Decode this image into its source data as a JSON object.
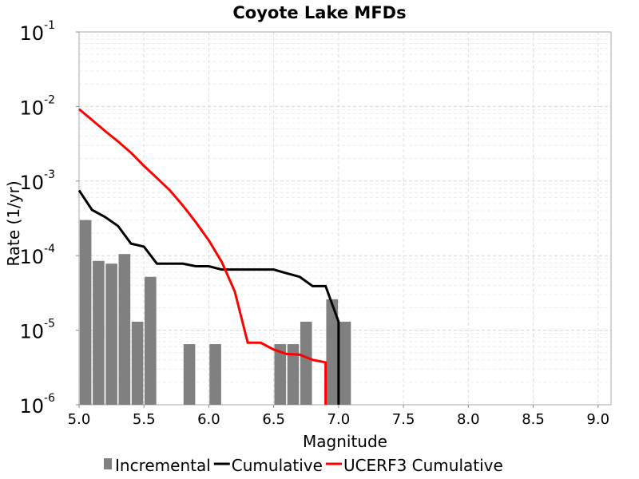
{
  "chart_data": {
    "type": "bar",
    "title": "Coyote Lake MFDs",
    "xlabel": "Magnitude",
    "ylabel": "Rate (1/yr)",
    "x_scale": "linear",
    "y_scale": "log",
    "xlim": [
      5.0,
      9.1
    ],
    "ylim": [
      1e-06,
      0.1
    ],
    "x_ticks": [
      {
        "value": 5.0,
        "label": "5.0"
      },
      {
        "value": 5.5,
        "label": "5.5"
      },
      {
        "value": 6.0,
        "label": "6.0"
      },
      {
        "value": 6.5,
        "label": "6.5"
      },
      {
        "value": 7.0,
        "label": "7.0"
      },
      {
        "value": 7.5,
        "label": "7.5"
      },
      {
        "value": 8.0,
        "label": "8.0"
      },
      {
        "value": 8.5,
        "label": "8.5"
      },
      {
        "value": 9.0,
        "label": "9.0"
      }
    ],
    "y_ticks": [
      {
        "value": 1e-06,
        "base": "10",
        "exp": "-6"
      },
      {
        "value": 1e-05,
        "base": "10",
        "exp": "-5"
      },
      {
        "value": 0.0001,
        "base": "10",
        "exp": "-4"
      },
      {
        "value": 0.001,
        "base": "10",
        "exp": "-3"
      },
      {
        "value": 0.01,
        "base": "10",
        "exp": "-2"
      },
      {
        "value": 0.1,
        "base": "10",
        "exp": "-1"
      }
    ],
    "grid": true,
    "legend_position": "bottom",
    "bar_width": 0.09,
    "series": [
      {
        "name": "Incremental",
        "kind": "bar",
        "color": "#808080",
        "points": [
          {
            "x": 5.05,
            "y": 0.0003
          },
          {
            "x": 5.15,
            "y": 8.5e-05
          },
          {
            "x": 5.25,
            "y": 7.8e-05
          },
          {
            "x": 5.35,
            "y": 0.000105
          },
          {
            "x": 5.45,
            "y": 1.3e-05
          },
          {
            "x": 5.55,
            "y": 5.2e-05
          },
          {
            "x": 5.85,
            "y": 6.5e-06
          },
          {
            "x": 6.05,
            "y": 6.5e-06
          },
          {
            "x": 6.55,
            "y": 6.5e-06
          },
          {
            "x": 6.65,
            "y": 6.5e-06
          },
          {
            "x": 6.75,
            "y": 1.3e-05
          },
          {
            "x": 6.95,
            "y": 2.6e-05
          },
          {
            "x": 7.05,
            "y": 1.3e-05
          }
        ]
      },
      {
        "name": "Cumulative",
        "kind": "line",
        "color": "#000000",
        "points": [
          {
            "x": 5.0,
            "y": 0.00075
          },
          {
            "x": 5.1,
            "y": 0.00041
          },
          {
            "x": 5.2,
            "y": 0.00033
          },
          {
            "x": 5.3,
            "y": 0.00025
          },
          {
            "x": 5.4,
            "y": 0.000145
          },
          {
            "x": 5.5,
            "y": 0.000132
          },
          {
            "x": 5.6,
            "y": 7.8e-05
          },
          {
            "x": 5.7,
            "y": 7.8e-05
          },
          {
            "x": 5.8,
            "y": 7.8e-05
          },
          {
            "x": 5.9,
            "y": 7.2e-05
          },
          {
            "x": 6.0,
            "y": 7.2e-05
          },
          {
            "x": 6.1,
            "y": 6.5e-05
          },
          {
            "x": 6.2,
            "y": 6.5e-05
          },
          {
            "x": 6.3,
            "y": 6.5e-05
          },
          {
            "x": 6.4,
            "y": 6.5e-05
          },
          {
            "x": 6.5,
            "y": 6.5e-05
          },
          {
            "x": 6.6,
            "y": 5.8e-05
          },
          {
            "x": 6.7,
            "y": 5.2e-05
          },
          {
            "x": 6.8,
            "y": 3.9e-05
          },
          {
            "x": 6.9,
            "y": 3.9e-05
          },
          {
            "x": 7.0,
            "y": 1.3e-05
          },
          {
            "x": 7.0,
            "y": 1e-06
          }
        ]
      },
      {
        "name": "UCERF3 Cumulative",
        "kind": "line",
        "color": "#ff0000",
        "points": [
          {
            "x": 5.0,
            "y": 0.0092
          },
          {
            "x": 5.1,
            "y": 0.0066
          },
          {
            "x": 5.2,
            "y": 0.0047
          },
          {
            "x": 5.3,
            "y": 0.0034
          },
          {
            "x": 5.4,
            "y": 0.0024
          },
          {
            "x": 5.5,
            "y": 0.0016
          },
          {
            "x": 5.6,
            "y": 0.0011
          },
          {
            "x": 5.7,
            "y": 0.00075
          },
          {
            "x": 5.8,
            "y": 0.00047
          },
          {
            "x": 5.9,
            "y": 0.00028
          },
          {
            "x": 6.0,
            "y": 0.00016
          },
          {
            "x": 6.1,
            "y": 8.2e-05
          },
          {
            "x": 6.2,
            "y": 3.3e-05
          },
          {
            "x": 6.3,
            "y": 6.8e-06
          },
          {
            "x": 6.4,
            "y": 6.8e-06
          },
          {
            "x": 6.5,
            "y": 5.5e-06
          },
          {
            "x": 6.6,
            "y": 4.8e-06
          },
          {
            "x": 6.7,
            "y": 4.7e-06
          },
          {
            "x": 6.8,
            "y": 4e-06
          },
          {
            "x": 6.9,
            "y": 3.7e-06
          },
          {
            "x": 6.9,
            "y": 1e-06
          }
        ]
      }
    ]
  }
}
